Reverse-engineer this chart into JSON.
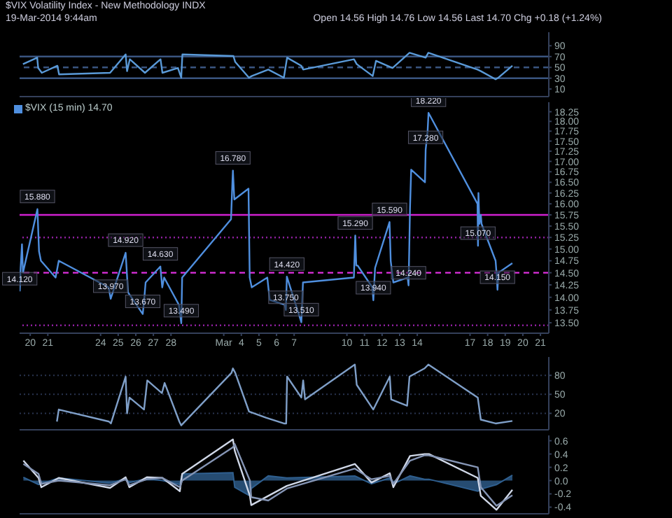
{
  "chart_data": [
    {
      "type": "line",
      "title": "$VIX  Volatility Index - New Methodology  INDX",
      "subtitle": "19-Mar-2014 9:44am",
      "annotations": [
        "Open 14.56 High 14.76 Low 14.56 Last 14.70 Chg +0.18 (+1.24%)"
      ],
      "xlim": [
        "2014-02-19T09:30",
        "2014-03-21T11:25"
      ],
      "ylim": [
        -4,
        115
      ],
      "yticks": [
        10,
        30,
        50,
        70,
        90
      ],
      "tick_labels": "y",
      "ref_lines": [
        {
          "axis": "y",
          "value": 70,
          "color": "#3a5580",
          "line_style": "solid"
        },
        {
          "axis": "y",
          "value": 50,
          "color": "#3a5580",
          "line_style": "dashed"
        },
        {
          "axis": "y",
          "value": 30,
          "color": "#3a5580",
          "line_style": "solid"
        }
      ],
      "series": [
        {
          "color": "#5a9ad8",
          "x": [
            "2014-02-19T14:05",
            "2014-02-20T09:30",
            "2014-02-20T10:50",
            "2014-02-20T15:50",
            "2014-02-21T13:05",
            "2014-02-21T15:20",
            "2014-02-24T12:55",
            "2014-02-25T10:10",
            "2014-02-25T12:05",
            "2014-02-25T15:50",
            "2014-02-26T12:30",
            "2014-02-27T09:45",
            "2014-02-27T12:20",
            "2014-02-28T09:30",
            "2014-02-28T14:00",
            "2014-02-28T15:35",
            "2014-03-03T13:10",
            "2014-03-03T15:40",
            "2014-03-04T10:25",
            "2014-03-04T14:10",
            "2014-03-05T12:45",
            "2014-03-06T10:00",
            "2014-03-06T14:25",
            "2014-03-07T09:50",
            "2014-03-07T12:20",
            "2014-03-10T09:40",
            "2014-03-10T13:25",
            "2014-03-11T11:15",
            "2014-03-11T15:40",
            "2014-03-12T14:15",
            "2014-03-13T13:25",
            "2014-03-14T11:25",
            "2014-03-14T15:05",
            "2014-03-17T10:10",
            "2014-03-17T14:40",
            "2014-03-18T10:50",
            "2014-03-18T14:40",
            "2014-03-19T09:45"
          ],
          "values": [
            56,
            68,
            49,
            40,
            53,
            37,
            40,
            74,
            43,
            65,
            40,
            65,
            40,
            49,
            31,
            74,
            71,
            60,
            31,
            34,
            46,
            31,
            68,
            53,
            46,
            65,
            56,
            34,
            62,
            49,
            77,
            68,
            77,
            46,
            43,
            28,
            31,
            53
          ]
        }
      ]
    },
    {
      "type": "line",
      "legend": "top left",
      "log": "y",
      "xlim": [
        "2014-02-19T09:30",
        "2014-03-21T11:25"
      ],
      "ylim": [
        13.3,
        18.5
      ],
      "xticks": [
        {
          "value": "2014-02-20",
          "label": "20"
        },
        {
          "value": "2014-02-21",
          "label": "21"
        },
        {
          "value": "2014-02-24",
          "label": "24"
        },
        {
          "value": "2014-02-25",
          "label": "25"
        },
        {
          "value": "2014-02-26",
          "label": "26"
        },
        {
          "value": "2014-02-27",
          "label": "27"
        },
        {
          "value": "2014-02-28",
          "label": "28"
        },
        {
          "value": "2014-03-03",
          "label": "Mar"
        },
        {
          "value": "2014-03-04",
          "label": "4"
        },
        {
          "value": "2014-03-05",
          "label": "5"
        },
        {
          "value": "2014-03-06",
          "label": "6"
        },
        {
          "value": "2014-03-07",
          "label": "7"
        },
        {
          "value": "2014-03-10",
          "label": "10"
        },
        {
          "value": "2014-03-11",
          "label": "11"
        },
        {
          "value": "2014-03-12",
          "label": "12"
        },
        {
          "value": "2014-03-13",
          "label": "13"
        },
        {
          "value": "2014-03-14",
          "label": "14"
        },
        {
          "value": "2014-03-17",
          "label": "17"
        },
        {
          "value": "2014-03-18",
          "label": "18"
        },
        {
          "value": "2014-03-19",
          "label": "19"
        },
        {
          "value": "2014-03-20",
          "label": "20"
        },
        {
          "value": "2014-03-21",
          "label": "21"
        }
      ],
      "yticks": [
        {
          "value": 13.5,
          "label": "13.50"
        },
        {
          "value": 13.75,
          "label": "13.75"
        },
        {
          "value": 14,
          "label": "14.00"
        },
        {
          "value": 14.25,
          "label": "14.25"
        },
        {
          "value": 14.5,
          "label": "14.50"
        },
        {
          "value": 14.75,
          "label": "14.75"
        },
        {
          "value": 15,
          "label": "15.00"
        },
        {
          "value": 15.25,
          "label": "15.25"
        },
        {
          "value": 15.5,
          "label": "15.50"
        },
        {
          "value": 15.75,
          "label": "15.75"
        },
        {
          "value": 16,
          "label": "16.00"
        },
        {
          "value": 16.25,
          "label": "16.25"
        },
        {
          "value": 16.5,
          "label": "16.50"
        },
        {
          "value": 16.75,
          "label": "16.75"
        },
        {
          "value": 17,
          "label": "17.00"
        },
        {
          "value": 17.25,
          "label": "17.25"
        },
        {
          "value": 17.5,
          "label": "17.50"
        },
        {
          "value": 17.75,
          "label": "17.75"
        },
        {
          "value": 18,
          "label": "18.00"
        },
        {
          "value": 18.25,
          "label": "18.25"
        }
      ],
      "ref_lines": [
        {
          "axis": "y",
          "value": 15.75,
          "color": "#d020d0",
          "line_style": "solid"
        },
        {
          "axis": "y",
          "value": 15.25,
          "color": "#9020a0",
          "line_style": "dotted"
        },
        {
          "axis": "y",
          "value": 14.5,
          "color": "#e030e0",
          "line_style": "dashed"
        },
        {
          "axis": "y",
          "value": 13.45,
          "color": "#9020a0",
          "line_style": "dotted"
        }
      ],
      "annotations": [
        {
          "text": "14.120",
          "x": "2014-02-19T09:40",
          "y": 14.12
        },
        {
          "text": "15.880",
          "x": "2014-02-20T09:50",
          "y": 15.88
        },
        {
          "text": "13.970",
          "x": "2014-02-24T13:45",
          "y": 13.97
        },
        {
          "text": "14.920",
          "x": "2014-02-25T10:10",
          "y": 14.92
        },
        {
          "text": "13.670",
          "x": "2014-02-26T09:30",
          "y": 13.67
        },
        {
          "text": "14.630",
          "x": "2014-02-27T09:30",
          "y": 14.63
        },
        {
          "text": "13.490",
          "x": "2014-02-28T14:05",
          "y": 13.49
        },
        {
          "text": "16.780",
          "x": "2014-03-03T12:30",
          "y": 16.78
        },
        {
          "text": "13.750",
          "x": "2014-03-06T12:45",
          "y": 13.75
        },
        {
          "text": "14.420",
          "x": "2014-03-06T14:05",
          "y": 14.42
        },
        {
          "text": "13.510",
          "x": "2014-03-07T09:50",
          "y": 13.51
        },
        {
          "text": "15.290",
          "x": "2014-03-10T11:25",
          "y": 15.29
        },
        {
          "text": "13.940",
          "x": "2014-03-11T12:05",
          "y": 13.94
        },
        {
          "text": "15.590",
          "x": "2014-03-12T10:10",
          "y": 15.59
        },
        {
          "text": "14.240",
          "x": "2014-03-13T12:05",
          "y": 14.24
        },
        {
          "text": "17.280",
          "x": "2014-03-14T11:25",
          "y": 17.28
        },
        {
          "text": "18.220",
          "x": "2014-03-14T15:20",
          "y": 18.22
        },
        {
          "text": "15.070",
          "x": "2014-03-17T10:50",
          "y": 15.07
        },
        {
          "text": "14.150",
          "x": "2014-03-18T13:25",
          "y": 14.15
        }
      ],
      "series": [
        {
          "name": "$VIX (15 min) 14.70",
          "color": "#4f8fdf",
          "x": [
            "2014-02-19T09:40",
            "2014-02-19T10:55",
            "2014-02-19T12:45",
            "2014-02-19T14:05",
            "2014-02-20T09:50",
            "2014-02-20T12:00",
            "2014-02-20T14:35",
            "2014-02-21T10:35",
            "2014-02-21T13:05",
            "2014-02-21T14:55",
            "2014-02-24T11:00",
            "2014-02-24T13:45",
            "2014-02-25T10:10",
            "2014-02-25T13:25",
            "2014-02-26T09:30",
            "2014-02-26T11:25",
            "2014-02-26T13:25",
            "2014-02-27T09:30",
            "2014-02-27T12:05",
            "2014-02-27T14:40",
            "2014-02-28T10:50",
            "2014-02-28T14:05",
            "2014-02-28T15:15",
            "2014-03-03T09:55",
            "2014-03-03T11:55",
            "2014-03-03T12:30",
            "2014-03-03T14:25",
            "2014-03-04T09:45",
            "2014-03-04T11:25",
            "2014-03-04T14:10",
            "2014-03-05T11:25",
            "2014-03-05T14:40",
            "2014-03-06T11:15",
            "2014-03-06T12:45",
            "2014-03-06T14:05",
            "2014-03-07T09:50",
            "2014-03-07T12:05",
            "2014-03-10T09:30",
            "2014-03-10T11:25",
            "2014-03-10T12:45",
            "2014-03-10T14:40",
            "2014-03-11T10:40",
            "2014-03-11T12:05",
            "2014-03-11T14:25",
            "2014-03-12T10:10",
            "2014-03-12T11:45",
            "2014-03-12T15:20",
            "2014-03-13T10:50",
            "2014-03-13T12:05",
            "2014-03-13T12:45",
            "2014-03-13T14:05",
            "2014-03-13T15:40",
            "2014-03-14T10:30",
            "2014-03-14T11:25",
            "2014-03-14T14:05",
            "2014-03-14T15:20",
            "2014-03-17T10:10",
            "2014-03-17T10:50",
            "2014-03-17T11:25",
            "2014-03-17T12:45",
            "2014-03-17T14:40",
            "2014-03-17T15:40",
            "2014-03-18T10:50",
            "2014-03-18T12:05",
            "2014-03-18T13:25",
            "2014-03-18T14:40",
            "2014-03-19T09:40"
          ],
          "values": [
            14.12,
            14.6,
            15.1,
            14.5,
            15.88,
            14.95,
            14.75,
            14.4,
            14.6,
            14.75,
            14.2,
            13.97,
            14.92,
            14.1,
            13.67,
            13.95,
            14.3,
            14.63,
            14.2,
            14.4,
            13.85,
            13.49,
            14.4,
            15.65,
            16.55,
            16.78,
            16.1,
            16.35,
            14.4,
            14.2,
            14.4,
            13.95,
            13.85,
            13.75,
            14.42,
            13.51,
            14.3,
            14.4,
            15.29,
            14.65,
            14.65,
            14.2,
            13.94,
            14.6,
            15.59,
            14.75,
            14.3,
            14.4,
            14.24,
            14.75,
            15.9,
            16.8,
            16.5,
            17.28,
            17.75,
            18.22,
            16.0,
            15.07,
            16.25,
            15.55,
            15.75,
            15.55,
            14.75,
            14.5,
            14.15,
            14.5,
            14.7
          ]
        }
      ]
    },
    {
      "type": "line",
      "xlim": [
        "2014-02-19T09:30",
        "2014-03-21T11:25"
      ],
      "ylim": [
        -6,
        109
      ],
      "yticks": [
        20,
        50,
        80
      ],
      "grid": "y",
      "tick_labels": "y",
      "series": [
        {
          "color": "#7f9fc8",
          "x": [
            "2014-02-21T12:25",
            "2014-02-21T14:55",
            "2014-02-24T11:25",
            "2014-02-24T14:05",
            "2014-02-25T10:10",
            "2014-02-25T12:05",
            "2014-02-25T15:20",
            "2014-02-26T11:15",
            "2014-02-26T15:40",
            "2014-02-27T11:40",
            "2014-02-27T15:20",
            "2014-02-28T11:25",
            "2014-02-28T14:00",
            "2014-03-03T10:35",
            "2014-03-03T12:30",
            "2014-03-03T15:40",
            "2014-03-04T10:25",
            "2014-03-05T10:10",
            "2014-03-06T10:00",
            "2014-03-06T13:10",
            "2014-03-06T14:25",
            "2014-03-07T09:50",
            "2014-03-07T12:20",
            "2014-03-07T14:55",
            "2014-03-10T10:50",
            "2014-03-10T13:25",
            "2014-03-11T12:00",
            "2014-03-12T10:30",
            "2014-03-12T12:25",
            "2014-03-13T10:10",
            "2014-03-13T13:25",
            "2014-03-14T10:00",
            "2014-03-14T15:05",
            "2014-03-17T10:30",
            "2014-03-17T14:40",
            "2014-03-18T10:50",
            "2014-03-19T09:45"
          ],
          "values": [
            7,
            26,
            7,
            4,
            78,
            20,
            45,
            26,
            72,
            52,
            68,
            7,
            1,
            84,
            91,
            84,
            23,
            13,
            4,
            4,
            78,
            45,
            72,
            42,
            97,
            65,
            26,
            78,
            42,
            32,
            78,
            91,
            97,
            45,
            10,
            4,
            8
          ]
        }
      ]
    },
    {
      "type": "line",
      "xlim": [
        "2014-02-19T09:30",
        "2014-03-21T11:25"
      ],
      "ylim": [
        -0.5,
        0.68
      ],
      "yticks": [
        {
          "value": 0.6,
          "label": "0.6"
        },
        {
          "value": 0.4,
          "label": "0.4"
        },
        {
          "value": 0.2,
          "label": "0.2"
        },
        {
          "value": 0,
          "label": "0.0"
        },
        {
          "value": -0.2,
          "label": "-0.2"
        },
        {
          "value": -0.4,
          "label": "-0.4"
        }
      ],
      "tick_labels": "y",
      "series": [
        {
          "type": "area",
          "color": "#2f5f8f",
          "x": [
            "2014-02-19T14:40",
            "2014-02-20T11:20",
            "2014-02-20T15:10",
            "2014-02-21T14:55",
            "2014-02-24T12:55",
            "2014-02-25T10:10",
            "2014-02-25T15:15",
            "2014-02-26T15:00",
            "2014-02-27T12:20",
            "2014-02-28T12:05",
            "2014-02-28T15:15",
            "2014-03-03T12:30",
            "2014-03-03T15:00",
            "2014-03-04T11:40",
            "2014-03-04T13:30",
            "2014-03-05T12:45",
            "2014-03-06T14:05",
            "2014-03-10T10:50",
            "2014-03-11T09:30",
            "2014-03-12T10:30",
            "2014-03-12T15:20",
            "2014-03-13T14:05",
            "2014-03-14T10:00",
            "2014-03-14T15:55",
            "2014-03-17T10:30",
            "2014-03-17T14:40",
            "2014-03-18T12:05",
            "2014-03-19T09:45"
          ],
          "values": [
            0.05,
            -0.06,
            -0.05,
            0.04,
            -0.04,
            0.03,
            -0.03,
            0.03,
            0,
            -0.06,
            0.1,
            0.12,
            -0.1,
            -0.23,
            -0.12,
            0.07,
            0.04,
            0.07,
            -0.05,
            0.04,
            -0.05,
            0.07,
            0.02,
            0.02,
            -0.16,
            -0.13,
            -0.06,
            0.08
          ]
        },
        {
          "color": "#d0d8e8",
          "x": [
            "2014-02-19T14:40",
            "2014-02-20T11:20",
            "2014-02-20T15:10",
            "2014-02-21T14:55",
            "2014-02-24T12:55",
            "2014-02-25T10:10",
            "2014-02-25T15:15",
            "2014-02-26T15:00",
            "2014-02-27T12:20",
            "2014-02-28T12:05",
            "2014-02-28T15:15",
            "2014-03-03T12:30",
            "2014-03-03T15:00",
            "2014-03-04T11:40",
            "2014-03-04T13:30",
            "2014-03-05T12:45",
            "2014-03-06T14:05",
            "2014-03-10T10:50",
            "2014-03-11T09:30",
            "2014-03-12T10:30",
            "2014-03-12T15:20",
            "2014-03-13T14:05",
            "2014-03-14T10:00",
            "2014-03-14T15:55",
            "2014-03-17T10:30",
            "2014-03-17T14:40",
            "2014-03-18T12:05",
            "2014-03-19T09:45"
          ],
          "values": [
            0.3,
            0.04,
            -0.1,
            0.04,
            -0.11,
            0.05,
            -0.1,
            0.05,
            0.04,
            -0.16,
            0.1,
            0.62,
            0.45,
            -0.23,
            -0.37,
            -0.23,
            -0.08,
            0.25,
            -0.03,
            0.11,
            -0.1,
            0.37,
            0.4,
            0.4,
            0.04,
            -0.23,
            -0.44,
            -0.14
          ]
        },
        {
          "color": "#8595b5",
          "x": [
            "2014-02-19T14:40",
            "2014-02-20T11:20",
            "2014-02-20T15:10",
            "2014-02-21T14:55",
            "2014-02-24T12:55",
            "2014-02-25T10:10",
            "2014-02-25T15:15",
            "2014-02-26T15:00",
            "2014-02-27T12:20",
            "2014-02-28T12:05",
            "2014-02-28T15:15",
            "2014-03-03T12:30",
            "2014-03-03T15:00",
            "2014-03-04T11:40",
            "2014-03-04T13:30",
            "2014-03-05T12:45",
            "2014-03-06T14:05",
            "2014-03-10T10:50",
            "2014-03-11T09:30",
            "2014-03-12T10:30",
            "2014-03-12T15:20",
            "2014-03-13T14:05",
            "2014-03-14T10:00",
            "2014-03-14T15:55",
            "2014-03-17T10:30",
            "2014-03-17T14:40",
            "2014-03-18T12:05",
            "2014-03-19T09:45"
          ],
          "values": [
            0.25,
            0.1,
            -0.05,
            0,
            -0.07,
            0.02,
            -0.07,
            0.02,
            0.04,
            -0.1,
            0,
            0.5,
            0.55,
            0,
            -0.25,
            -0.3,
            -0.12,
            0.18,
            0.02,
            0.07,
            -0.05,
            0.3,
            0.38,
            0.38,
            0.2,
            -0.1,
            -0.38,
            -0.22
          ]
        }
      ]
    }
  ]
}
